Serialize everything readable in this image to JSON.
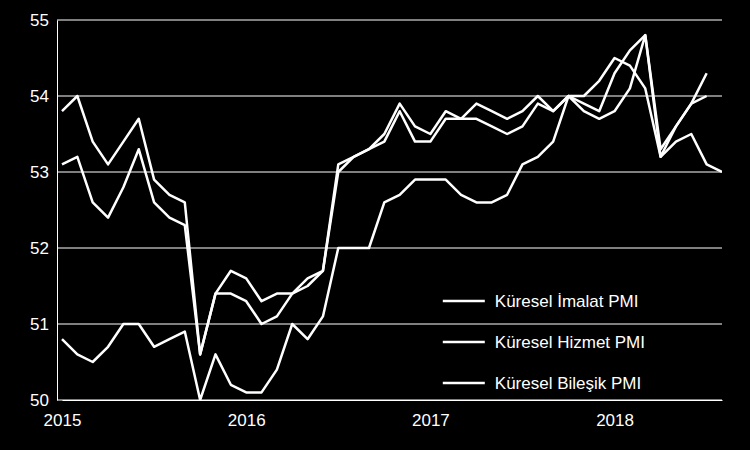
{
  "chart_data": {
    "type": "line",
    "categories": [
      "2015",
      null,
      null,
      null,
      null,
      null,
      null,
      null,
      null,
      null,
      null,
      null,
      "2016",
      null,
      null,
      null,
      null,
      null,
      null,
      null,
      null,
      null,
      null,
      null,
      "2017",
      null,
      null,
      null,
      null,
      null,
      null,
      null,
      null,
      null,
      null,
      null,
      "2018",
      null,
      null,
      null,
      null,
      null,
      null,
      null
    ],
    "series": [
      {
        "name": "Küresel İmalat PMI",
        "color": "#ffffff",
        "values": [
          50.8,
          50.6,
          50.5,
          50.7,
          51.0,
          51.0,
          50.7,
          50.8,
          50.9,
          50.0,
          50.6,
          50.2,
          50.1,
          50.1,
          50.4,
          51.0,
          50.8,
          51.1,
          52.0,
          52.0,
          52.0,
          52.6,
          52.7,
          52.9,
          52.9,
          52.9,
          52.7,
          52.6,
          52.6,
          52.7,
          53.1,
          53.2,
          53.4,
          54.0,
          54.0,
          54.2,
          54.5,
          54.4,
          54.1,
          53.2,
          53.4,
          53.5,
          53.1,
          53.0
        ]
      },
      {
        "name": "Küresel Hizmet PMI",
        "color": "#ffffff",
        "values": [
          53.8,
          54.0,
          53.4,
          53.1,
          53.4,
          53.7,
          52.9,
          52.7,
          52.6,
          50.6,
          51.4,
          51.7,
          51.6,
          51.3,
          51.4,
          51.4,
          51.5,
          51.7,
          53.1,
          53.2,
          53.3,
          53.5,
          53.9,
          53.6,
          53.5,
          53.8,
          53.7,
          53.9,
          53.8,
          53.7,
          53.8,
          54.0,
          53.8,
          54.0,
          53.9,
          53.8,
          54.3,
          54.6,
          54.8,
          53.3,
          53.6,
          53.9,
          54.0,
          null
        ]
      },
      {
        "name": "Küresel Bileşik PMI",
        "color": "#ffffff",
        "values": [
          53.1,
          53.2,
          52.6,
          52.4,
          52.8,
          53.3,
          52.6,
          52.4,
          52.3,
          50.6,
          51.4,
          51.4,
          51.3,
          51.0,
          51.1,
          51.4,
          51.6,
          51.7,
          53.0,
          53.2,
          53.3,
          53.4,
          53.8,
          53.4,
          53.4,
          53.7,
          53.7,
          53.7,
          53.6,
          53.5,
          53.6,
          53.9,
          53.8,
          54.0,
          53.8,
          53.7,
          53.8,
          54.1,
          54.8,
          53.2,
          53.6,
          53.9,
          54.3,
          null
        ]
      }
    ],
    "ylim": [
      50,
      55
    ],
    "yticks": [
      50,
      51,
      52,
      53,
      54,
      55
    ],
    "grid": true,
    "legend": "lower right"
  }
}
